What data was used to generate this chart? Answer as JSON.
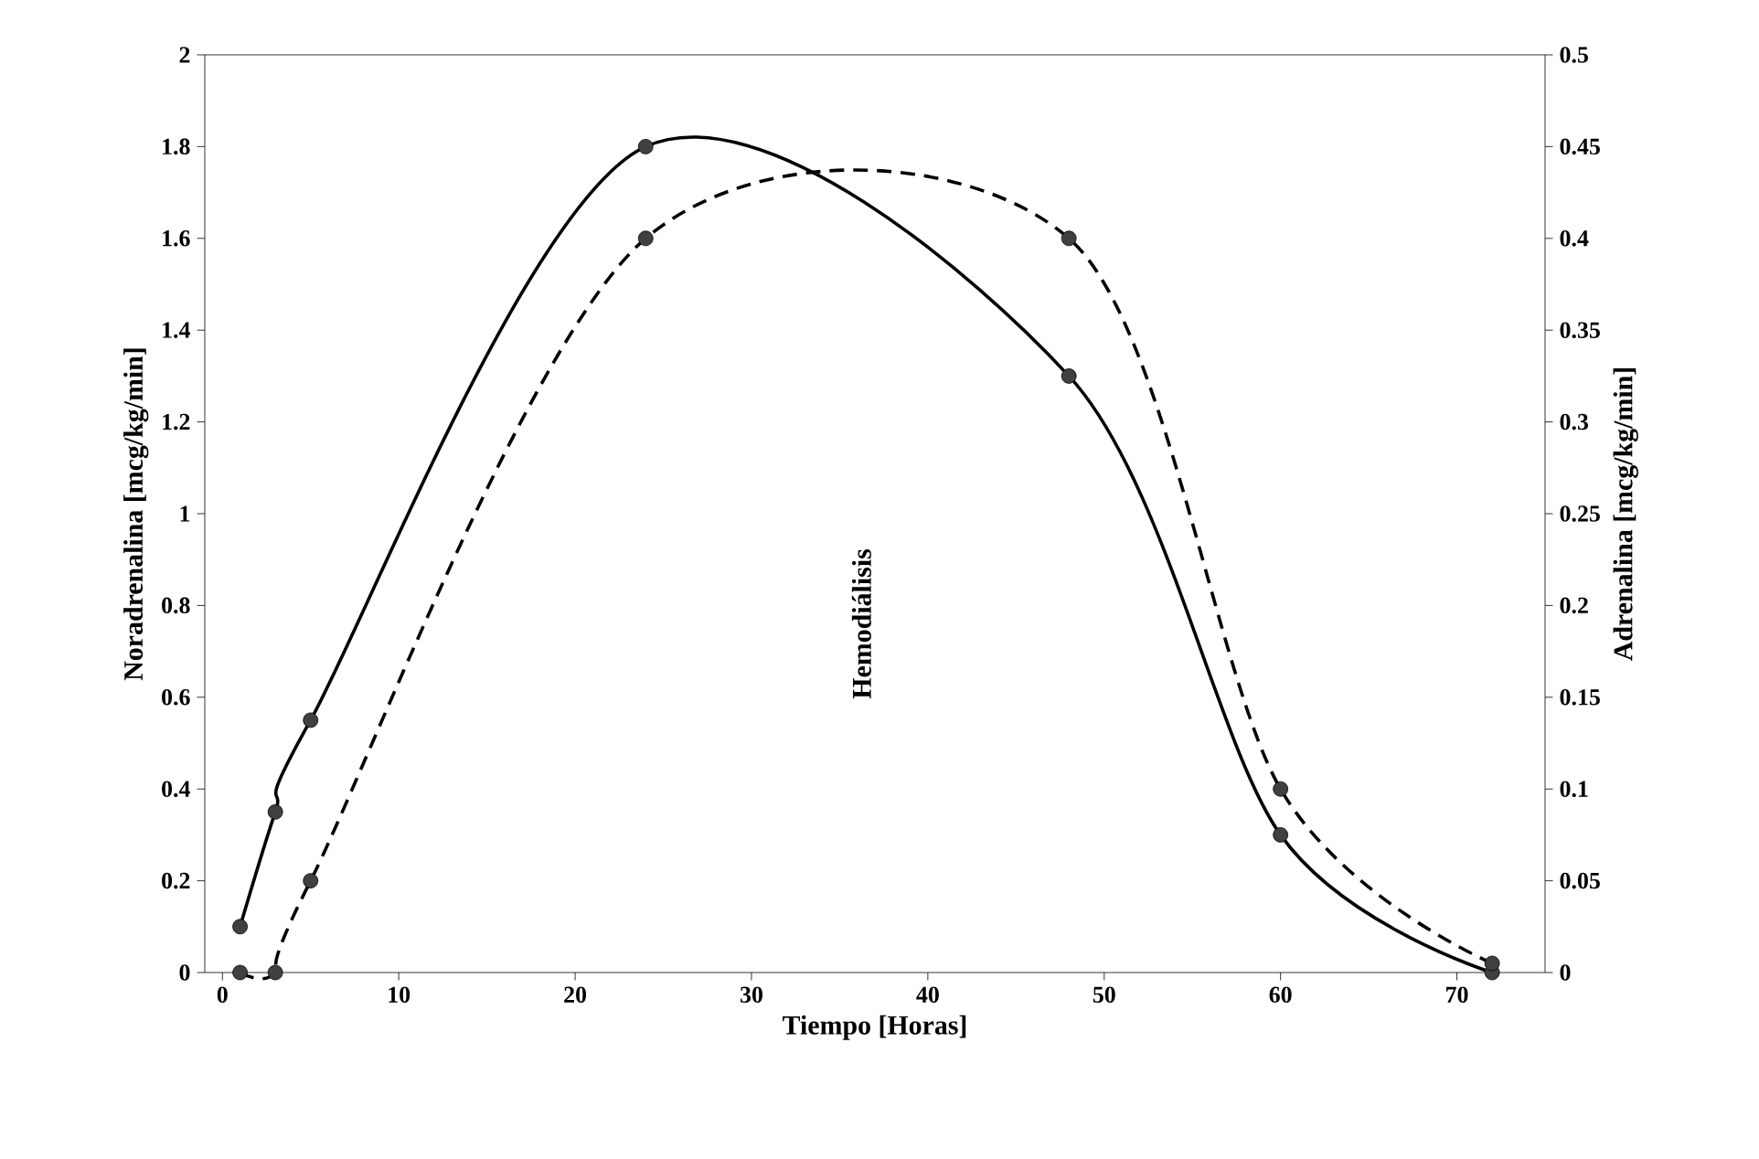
{
  "chart_data": {
    "type": "line",
    "xlabel": "Tiempo [Horas]",
    "ylabel": "Noradrenalina [mcg/kg/min]",
    "y2label": "Adrenalina [mcg/kg/min]",
    "x": [
      1,
      3,
      5,
      24,
      48,
      60,
      72
    ],
    "series": [
      {
        "color": "#000000",
        "line_style": "solid",
        "values": [
          0.1,
          0.35,
          0.55,
          1.8,
          1.3,
          0.3,
          0
        ]
      },
      {
        "color": "#000000",
        "line_style": "dashed",
        "axis": "y2",
        "values": [
          0,
          0,
          0.05,
          0.4,
          0.4,
          0.1,
          0.005
        ]
      }
    ],
    "xlim": [
      -1,
      75
    ],
    "xticks": [
      0,
      10,
      20,
      30,
      40,
      50,
      60,
      70
    ],
    "ylim": [
      0,
      2
    ],
    "yticks": [
      0,
      0.2,
      0.4,
      0.6,
      0.8,
      1,
      1.2,
      1.4,
      1.6,
      1.8,
      2
    ],
    "y2lim": [
      0,
      0.5
    ],
    "y2ticks": [
      0,
      0.05,
      0.1,
      0.15,
      0.2,
      0.25,
      0.3,
      0.35,
      0.4,
      0.45,
      0.5
    ],
    "marker": "circle",
    "grid": false,
    "annotations": [
      "Hemodiálisis"
    ]
  }
}
